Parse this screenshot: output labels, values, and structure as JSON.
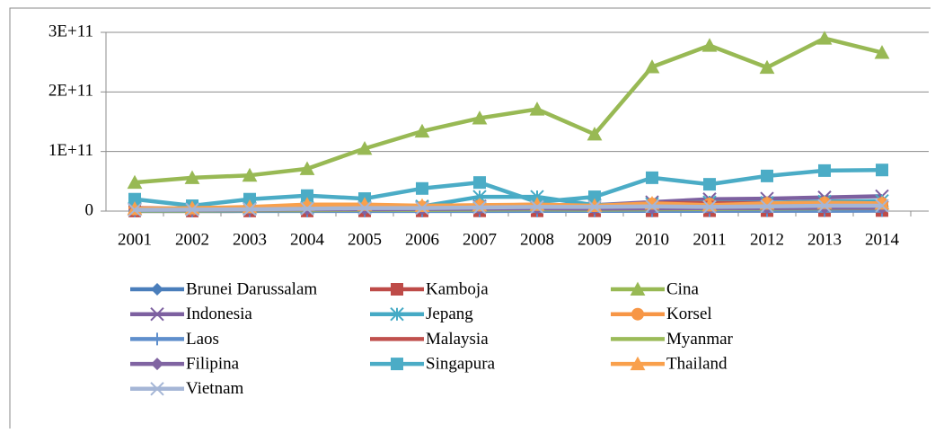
{
  "chart_data": {
    "type": "line",
    "categories": [
      "2001",
      "2002",
      "2003",
      "2004",
      "2005",
      "2006",
      "2007",
      "2008",
      "2009",
      "2010",
      "2011",
      "2012",
      "2013",
      "2014"
    ],
    "ylim": [
      0,
      300000000000
    ],
    "yticks": [
      0,
      {
        "value": 100000000000,
        "label": "1E+11"
      },
      {
        "value": 200000000000,
        "label": "2E+11"
      },
      {
        "value": 300000000000,
        "label": "3E+11"
      }
    ],
    "grid": true,
    "legend": "bottom",
    "series": [
      {
        "name": "Brunei Darussalam",
        "color": "#4a7ebb",
        "marker": "diamond",
        "values": [
          1000000000,
          1000000000,
          1000000000,
          1000000000,
          1500000000,
          1500000000,
          1500000000,
          2000000000,
          1500000000,
          2000000000,
          2000000000,
          2000000000,
          2000000000,
          2000000000
        ]
      },
      {
        "name": "Kamboja",
        "color": "#be4b48",
        "marker": "square",
        "values": [
          200000000,
          200000000,
          300000000,
          300000000,
          400000000,
          400000000,
          500000000,
          500000000,
          500000000,
          600000000,
          700000000,
          800000000,
          900000000,
          1000000000
        ]
      },
      {
        "name": "Cina",
        "color": "#98b954",
        "marker": "triangle",
        "values": [
          48000000000,
          56000000000,
          60000000000,
          71000000000,
          105000000000,
          134000000000,
          156000000000,
          171000000000,
          129000000000,
          242000000000,
          278000000000,
          241000000000,
          290000000000,
          266000000000
        ]
      },
      {
        "name": "Indonesia",
        "color": "#7d60a0",
        "marker": "x",
        "values": [
          3000000000,
          3000000000,
          4000000000,
          5000000000,
          5000000000,
          6000000000,
          8000000000,
          10000000000,
          10000000000,
          15000000000,
          20000000000,
          21000000000,
          23000000000,
          25000000000
        ]
      },
      {
        "name": "Jepang",
        "color": "#46aac5",
        "marker": "star",
        "values": [
          5000000000,
          4000000000,
          5000000000,
          6000000000,
          7000000000,
          8000000000,
          24000000000,
          24000000000,
          10000000000,
          12000000000,
          15000000000,
          14000000000,
          16000000000,
          17000000000
        ]
      },
      {
        "name": "Korsel",
        "color": "#f79646",
        "marker": "circle",
        "values": [
          3000000000,
          3000000000,
          5000000000,
          6000000000,
          7000000000,
          7000000000,
          9000000000,
          10000000000,
          8000000000,
          12000000000,
          12000000000,
          13000000000,
          14000000000,
          13000000000
        ]
      },
      {
        "name": "Laos",
        "color": "#5f8fcc",
        "marker": "plus",
        "values": [
          100000000,
          100000000,
          100000000,
          100000000,
          200000000,
          200000000,
          200000000,
          300000000,
          300000000,
          400000000,
          500000000,
          500000000,
          600000000,
          700000000
        ]
      },
      {
        "name": "Malaysia",
        "color": "#c0504d",
        "marker": "none",
        "values": [
          5000000000,
          4000000000,
          6000000000,
          8000000000,
          9000000000,
          8000000000,
          9000000000,
          11000000000,
          8000000000,
          13000000000,
          14000000000,
          13000000000,
          13000000000,
          13000000000
        ]
      },
      {
        "name": "Myanmar",
        "color": "#9bbb59",
        "marker": "none",
        "values": [
          1000000000,
          1000000000,
          1500000000,
          1500000000,
          2000000000,
          2000000000,
          2500000000,
          3000000000,
          2500000000,
          3000000000,
          3500000000,
          4000000000,
          4500000000,
          5000000000
        ]
      },
      {
        "name": "Filipina",
        "color": "#8064a2",
        "marker": "diamond",
        "values": [
          2000000000,
          2000000000,
          2500000000,
          3000000000,
          3000000000,
          3500000000,
          4000000000,
          4500000000,
          4000000000,
          4500000000,
          5000000000,
          5000000000,
          5500000000,
          5500000000
        ]
      },
      {
        "name": "Singapura",
        "color": "#4bacc6",
        "marker": "square",
        "values": [
          20000000000,
          9000000000,
          20000000000,
          26000000000,
          21000000000,
          38000000000,
          48000000000,
          15000000000,
          24000000000,
          56000000000,
          45000000000,
          59000000000,
          68000000000,
          69000000000
        ]
      },
      {
        "name": "Thailand",
        "color": "#f9a04c",
        "marker": "triangle",
        "values": [
          4000000000,
          5000000000,
          7000000000,
          11000000000,
          11000000000,
          9000000000,
          10000000000,
          11000000000,
          9000000000,
          13000000000,
          10000000000,
          13000000000,
          14000000000,
          13000000000
        ]
      },
      {
        "name": "Vietnam",
        "color": "#a5b6d6",
        "marker": "x",
        "values": [
          2000000000,
          2500000000,
          3000000000,
          4000000000,
          5000000000,
          5000000000,
          6000000000,
          7000000000,
          7000000000,
          8000000000,
          7000000000,
          8000000000,
          9000000000,
          9000000000
        ]
      }
    ]
  }
}
